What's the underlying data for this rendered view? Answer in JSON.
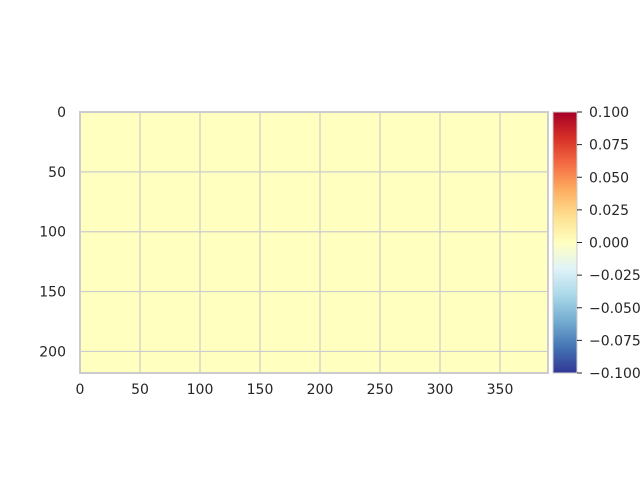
{
  "chart_data": {
    "type": "heatmap",
    "title": "",
    "xlabel": "",
    "ylabel": "",
    "x_range": [
      0,
      390
    ],
    "y_range": [
      0,
      218
    ],
    "y_inverted": true,
    "x_ticks": [
      "0",
      "50",
      "100",
      "150",
      "200",
      "250",
      "300",
      "350"
    ],
    "y_ticks": [
      "0",
      "50",
      "100",
      "150",
      "200"
    ],
    "values_uniform": 0.0,
    "fill_color": "#ffffbf",
    "grid": true,
    "colorbar": {
      "colormap": "RdYlBu_r",
      "range": [
        -0.1,
        0.1
      ],
      "ticks": [
        "0.100",
        "0.075",
        "0.050",
        "0.025",
        "0.000",
        "−0.025",
        "−0.050",
        "−0.075",
        "−0.100"
      ],
      "colors": [
        "#313695",
        "#4575b4",
        "#74add1",
        "#abd9e9",
        "#e0f3f8",
        "#ffffbf",
        "#fee090",
        "#fdae61",
        "#f46d43",
        "#d73027",
        "#a50026"
      ]
    }
  }
}
